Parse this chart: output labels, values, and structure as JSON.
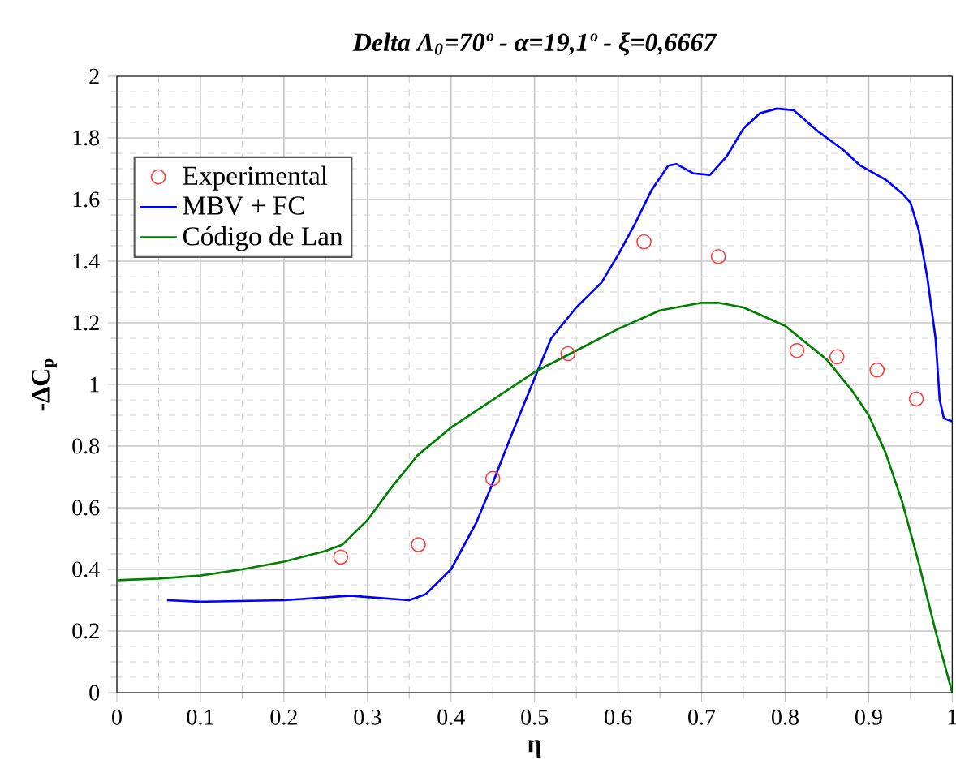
{
  "chart_data": {
    "type": "line",
    "title": "Delta Λ$_{0}$=70º - α=19,1º - ξ=0,6667",
    "xlabel": "η",
    "ylabel": "-ΔC$_{p}$",
    "series": [
      {
        "name": "Experimental",
        "type": "scatter",
        "marker": "circle",
        "color": "#ff4040",
        "x": [
          0.268,
          0.361,
          0.45,
          0.54,
          0.631,
          0.72,
          0.814,
          0.862,
          0.91,
          0.957
        ],
        "values": [
          0.44,
          0.48,
          0.695,
          1.1,
          1.463,
          1.415,
          1.11,
          1.09,
          1.047,
          0.953
        ]
      },
      {
        "name": "MBV + FC",
        "color": "#0000ff",
        "x": [
          0.06,
          0.1,
          0.2,
          0.28,
          0.3,
          0.35,
          0.37,
          0.4,
          0.43,
          0.45,
          0.47,
          0.5,
          0.52,
          0.55,
          0.58,
          0.6,
          0.62,
          0.64,
          0.66,
          0.67,
          0.69,
          0.71,
          0.73,
          0.75,
          0.77,
          0.79,
          0.81,
          0.84,
          0.87,
          0.89,
          0.92,
          0.94,
          0.95,
          0.96,
          0.97,
          0.98,
          0.985,
          0.99,
          1.0
        ],
        "values": [
          0.3,
          0.295,
          0.3,
          0.315,
          0.31,
          0.3,
          0.32,
          0.4,
          0.55,
          0.68,
          0.82,
          1.02,
          1.15,
          1.25,
          1.33,
          1.42,
          1.52,
          1.63,
          1.71,
          1.715,
          1.685,
          1.68,
          1.74,
          1.83,
          1.88,
          1.895,
          1.89,
          1.82,
          1.76,
          1.71,
          1.665,
          1.62,
          1.59,
          1.5,
          1.35,
          1.15,
          0.95,
          0.89,
          0.88
        ]
      },
      {
        "name": "Código de Lan",
        "color": "#008000",
        "x": [
          0,
          0.05,
          0.1,
          0.15,
          0.2,
          0.25,
          0.27,
          0.3,
          0.33,
          0.36,
          0.4,
          0.45,
          0.5,
          0.55,
          0.6,
          0.65,
          0.7,
          0.72,
          0.75,
          0.8,
          0.85,
          0.88,
          0.9,
          0.92,
          0.94,
          0.96,
          0.98,
          1.0
        ],
        "values": [
          0.365,
          0.37,
          0.38,
          0.4,
          0.425,
          0.46,
          0.48,
          0.56,
          0.67,
          0.77,
          0.86,
          0.95,
          1.04,
          1.11,
          1.18,
          1.24,
          1.265,
          1.265,
          1.25,
          1.19,
          1.08,
          0.98,
          0.9,
          0.78,
          0.62,
          0.42,
          0.2,
          0.0
        ]
      }
    ],
    "xlim": [
      0,
      1
    ],
    "ylim": [
      0,
      2
    ],
    "xticks": [
      0,
      0.1,
      0.2,
      0.3,
      0.4,
      0.5,
      0.6,
      0.7,
      0.8,
      0.9,
      1
    ],
    "yticks": [
      0,
      0.2,
      0.4,
      0.6,
      0.8,
      1,
      1.2,
      1.4,
      1.6,
      1.8,
      2
    ],
    "grid": true,
    "legend": "top left"
  }
}
